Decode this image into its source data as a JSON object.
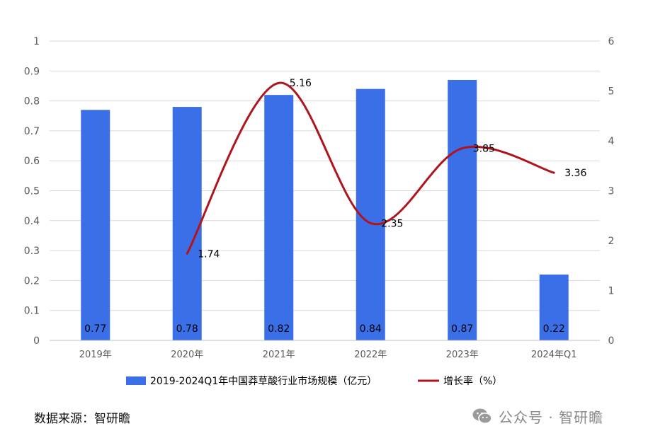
{
  "chart_data": {
    "type": "bar",
    "categories": [
      "2019年",
      "2020年",
      "2021年",
      "2022年",
      "2023年",
      "2024年Q1"
    ],
    "series": [
      {
        "name": "2019-2024Q1年中国莽草酸行业市场规模（亿元）",
        "type": "bar",
        "axis": "left",
        "color": "#3b6fe8",
        "values": [
          0.77,
          0.78,
          0.82,
          0.84,
          0.87,
          0.22
        ],
        "labels": [
          "0.77",
          "0.78",
          "0.82",
          "0.84",
          "0.87",
          "0.22"
        ]
      },
      {
        "name": "增长率（%）",
        "type": "line",
        "axis": "right",
        "smooth": true,
        "color": "#b0141c",
        "values": [
          null,
          1.74,
          5.16,
          2.35,
          3.85,
          3.36
        ],
        "labels": [
          "",
          "1.74",
          "5.16",
          "2.35",
          "3.85",
          "3.36"
        ]
      }
    ],
    "y_left": {
      "lim": [
        0,
        1
      ],
      "ticks": [
        "0",
        "0.1",
        "0.2",
        "0.3",
        "0.4",
        "0.5",
        "0.6",
        "0.7",
        "0.8",
        "0.9",
        "1"
      ]
    },
    "y_right": {
      "lim": [
        0,
        6
      ],
      "ticks": [
        "0",
        "1",
        "2",
        "3",
        "4",
        "5",
        "6"
      ]
    },
    "grid": true,
    "legend": "bottom",
    "title": "",
    "xlabel": "",
    "ylabel": ""
  },
  "footer": {
    "source": "数据来源：智研瞻",
    "watermark": "公众号 · 智研瞻",
    "watermark_icon": "wechat-icon"
  }
}
